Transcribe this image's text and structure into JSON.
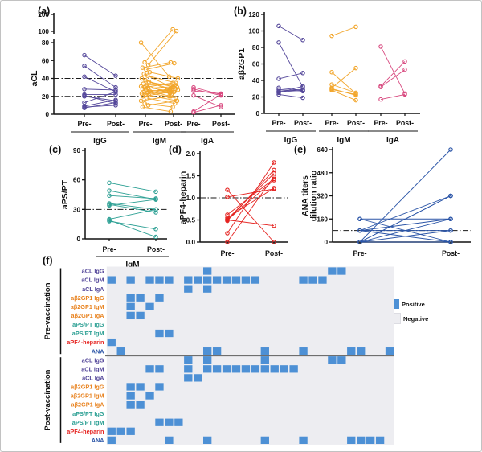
{
  "figure": {
    "background": "#ffffff",
    "border_color": "#c2c2c2",
    "threshold_line_color": "#1a1a1a"
  },
  "chart_data": [
    {
      "id": "a",
      "panel_label": "(a)",
      "type": "paired-scatter",
      "ylabel": "aCL",
      "ylim": [
        0,
        80
      ],
      "ytick_values": [
        0,
        20,
        40,
        60,
        80
      ],
      "ytick_labels": [
        "0",
        "20",
        "40",
        "60",
        "80"
      ],
      "axis_break": {
        "tick_values": [
          100,
          200
        ],
        "tick_labels": [
          "100",
          "200"
        ]
      },
      "thresholds": [
        20,
        40
      ],
      "x_tick_labels": [
        "Pre-",
        "Post-"
      ],
      "groups": [
        {
          "name": "IgG",
          "color": "#54479a",
          "pairs": [
            [
              66,
              43
            ],
            [
              54,
              30
            ],
            [
              42,
              25
            ],
            [
              28,
              27
            ],
            [
              22,
              22
            ],
            [
              21,
              12
            ],
            [
              20,
              15
            ],
            [
              13,
              25
            ],
            [
              9,
              16
            ],
            [
              8,
              10
            ],
            [
              7,
              13
            ]
          ]
        },
        {
          "name": "IgM",
          "color": "#f2a62c",
          "pairs": [
            [
              80,
              42
            ],
            [
              58,
              112
            ],
            [
              55,
              102
            ],
            [
              52,
              58
            ],
            [
              50,
              57
            ],
            [
              47,
              40
            ],
            [
              45,
              30
            ],
            [
              43,
              35
            ],
            [
              40,
              28
            ],
            [
              38,
              25
            ],
            [
              36,
              30
            ],
            [
              34,
              22
            ],
            [
              33,
              33
            ],
            [
              31,
              26
            ],
            [
              30,
              35
            ],
            [
              29,
              31
            ],
            [
              28,
              20
            ],
            [
              27,
              25
            ],
            [
              26,
              27
            ],
            [
              25,
              28
            ],
            [
              24,
              18
            ],
            [
              23,
              24
            ],
            [
              22,
              30
            ],
            [
              21,
              15
            ],
            [
              20,
              25
            ],
            [
              18,
              12
            ],
            [
              15,
              20
            ],
            [
              12,
              8
            ],
            [
              10,
              15
            ],
            [
              8,
              3
            ]
          ]
        },
        {
          "name": "IgA",
          "color": "#d8497f",
          "pairs": [
            [
              30,
              22
            ],
            [
              28,
              21
            ],
            [
              26,
              23
            ],
            [
              21,
              8
            ],
            [
              3,
              22
            ],
            [
              2,
              10
            ]
          ]
        }
      ]
    },
    {
      "id": "b",
      "panel_label": "(b)",
      "type": "paired-scatter",
      "ylabel": "aβ2GP1",
      "ylim": [
        0,
        120
      ],
      "ytick_values": [
        0,
        20,
        40,
        60,
        80,
        100,
        120
      ],
      "ytick_labels": [
        "0",
        "20",
        "40",
        "60",
        "80",
        "100",
        "120"
      ],
      "thresholds": [
        20
      ],
      "x_tick_labels": [
        "Pre-",
        "Post-"
      ],
      "groups": [
        {
          "name": "IgG",
          "color": "#54479a",
          "pairs": [
            [
              106,
              89
            ],
            [
              86,
              32
            ],
            [
              42,
              49
            ],
            [
              31,
              28
            ],
            [
              29,
              27
            ],
            [
              27,
              29
            ],
            [
              26,
              28
            ],
            [
              25,
              33
            ],
            [
              23,
              19
            ]
          ]
        },
        {
          "name": "IgM",
          "color": "#f2a62c",
          "pairs": [
            [
              94,
              105
            ],
            [
              50,
              24
            ],
            [
              35,
              25
            ],
            [
              31,
              55
            ],
            [
              30,
              22
            ],
            [
              29,
              23
            ],
            [
              28,
              16
            ]
          ]
        },
        {
          "name": "IgA",
          "color": "#d8497f",
          "pairs": [
            [
              81,
              24
            ],
            [
              33,
              63
            ],
            [
              32,
              53
            ],
            [
              17,
              23
            ]
          ]
        }
      ]
    },
    {
      "id": "c",
      "panel_label": "(c)",
      "type": "paired-scatter",
      "ylabel": "aPS/PT",
      "ylim": [
        0,
        90
      ],
      "ytick_values": [
        0,
        30,
        60,
        90
      ],
      "ytick_labels": [
        "0",
        "30",
        "60",
        "90"
      ],
      "thresholds": [
        30
      ],
      "x_tick_labels": [
        "Pre-",
        "Post-"
      ],
      "groups": [
        {
          "name": "IgM",
          "color": "#2da094",
          "pairs": [
            [
              57,
              48
            ],
            [
              49,
              40
            ],
            [
              44,
              41
            ],
            [
              36,
              30
            ],
            [
              35,
              27
            ],
            [
              34,
              40
            ],
            [
              20,
              30
            ],
            [
              19,
              2
            ],
            [
              18,
              10
            ]
          ]
        }
      ]
    },
    {
      "id": "d",
      "panel_label": "(d)",
      "type": "paired-scatter",
      "ylabel": "aPF4-heparin",
      "ylim": [
        0,
        2
      ],
      "ytick_values": [
        0,
        0.5,
        1,
        1.5,
        2
      ],
      "ytick_labels": [
        "0.0",
        "0.5",
        "1.0",
        "1.5",
        "2.0"
      ],
      "thresholds": [
        1
      ],
      "x_tick_labels": [
        "Pre-",
        "Post-"
      ],
      "groups": [
        {
          "name": "",
          "color": "#e52320",
          "pairs": [
            [
              1.18,
              0.0
            ],
            [
              1.02,
              1.2
            ],
            [
              0.62,
              1.43
            ],
            [
              0.55,
              1.22
            ],
            [
              0.52,
              1.55
            ],
            [
              0.5,
              1.4
            ],
            [
              0.5,
              0.37
            ],
            [
              0.48,
              1.63
            ],
            [
              0.2,
              1.8
            ],
            [
              0.0,
              1.48
            ]
          ]
        }
      ]
    },
    {
      "id": "e",
      "panel_label": "(e)",
      "type": "paired-scatter",
      "ylabel": "ANA titers dilution ratio",
      "ylabel_lines": [
        "ANA titers",
        "dilution ratio"
      ],
      "ylim": [
        0,
        640
      ],
      "ytick_values": [
        0,
        160,
        320,
        480,
        640
      ],
      "ytick_labels": [
        "0",
        "160",
        "320",
        "480",
        "640"
      ],
      "thresholds": [
        80
      ],
      "x_tick_labels": [
        "Pre-",
        "Post-"
      ],
      "groups": [
        {
          "name": "",
          "color": "#2b55a7",
          "pairs": [
            [
              160,
              0
            ],
            [
              160,
              160
            ],
            [
              80,
              320
            ],
            [
              80,
              160
            ],
            [
              80,
              0
            ],
            [
              80,
              80
            ],
            [
              0,
              640
            ],
            [
              0,
              320
            ],
            [
              0,
              320
            ],
            [
              0,
              160
            ],
            [
              0,
              80
            ],
            [
              0,
              0
            ]
          ]
        }
      ]
    },
    {
      "id": "f",
      "panel_label": "(f)",
      "type": "heatmap",
      "columns": 30,
      "background_color": "#ededf1",
      "positive_color": "#4d90d5",
      "legend": {
        "positive": "Positive",
        "negative": "Negative",
        "positive_color": "#4d90d5",
        "negative_color": "#ededf1"
      },
      "sections": [
        {
          "name": "Pre-vaccination",
          "rows": [
            {
              "label": "aCL IgG",
              "color": "#54479a",
              "positive_columns": [
                10,
                23,
                24
              ]
            },
            {
              "label": "aCL IgM",
              "color": "#54479a",
              "positive_columns": [
                0,
                2,
                4,
                5,
                6,
                8,
                9,
                10,
                11,
                12,
                13,
                14,
                15,
                20,
                21,
                22
              ]
            },
            {
              "label": "aCL IgA",
              "color": "#54479a",
              "positive_columns": [
                8,
                10
              ]
            },
            {
              "label": "aβ2GP1 IgG",
              "color": "#e8821e",
              "positive_columns": [
                2,
                3,
                5
              ]
            },
            {
              "label": "aβ2GP1 IgM",
              "color": "#e8821e",
              "positive_columns": [
                2,
                4
              ]
            },
            {
              "label": "aβ2GP1 IgA",
              "color": "#e8821e",
              "positive_columns": [
                2,
                3
              ]
            },
            {
              "label": "aPS/PT IgG",
              "color": "#2da094",
              "positive_columns": []
            },
            {
              "label": "aPS/PT IgM",
              "color": "#2da094",
              "positive_columns": [
                5,
                6
              ]
            },
            {
              "label": "aPF4-heparin",
              "color": "#e52320",
              "positive_columns": [
                0
              ]
            },
            {
              "label": "ANA",
              "color": "#2b55a7",
              "positive_columns": [
                1,
                10,
                11,
                16,
                20,
                25,
                26,
                29
              ]
            }
          ]
        },
        {
          "name": "Post-vaccination",
          "rows": [
            {
              "label": "aCL IgG",
              "color": "#54479a",
              "positive_columns": [
                8,
                10,
                16,
                23,
                24
              ]
            },
            {
              "label": "aCL IgM",
              "color": "#54479a",
              "positive_columns": [
                4,
                5,
                8,
                10,
                11,
                12,
                13,
                14,
                15,
                16,
                17,
                18,
                19
              ]
            },
            {
              "label": "aCL IgA",
              "color": "#54479a",
              "positive_columns": [
                8,
                9
              ]
            },
            {
              "label": "aβ2GP1 IgG",
              "color": "#e8821e",
              "positive_columns": [
                2,
                3,
                5
              ]
            },
            {
              "label": "aβ2GP1 IgM",
              "color": "#e8821e",
              "positive_columns": [
                2,
                4
              ]
            },
            {
              "label": "aβ2GP1 IgA",
              "color": "#e8821e",
              "positive_columns": [
                2,
                3
              ]
            },
            {
              "label": "aPS/PT IgG",
              "color": "#2da094",
              "positive_columns": []
            },
            {
              "label": "aPS/PT IgM",
              "color": "#2da094",
              "positive_columns": [
                5,
                6,
                7
              ]
            },
            {
              "label": "aPF4-heparin",
              "color": "#e52320",
              "positive_columns": [
                0,
                1,
                2
              ]
            },
            {
              "label": "ANA",
              "color": "#2b55a7",
              "positive_columns": [
                0,
                6,
                10,
                16,
                20,
                25,
                26,
                27,
                28
              ]
            }
          ]
        }
      ]
    }
  ]
}
